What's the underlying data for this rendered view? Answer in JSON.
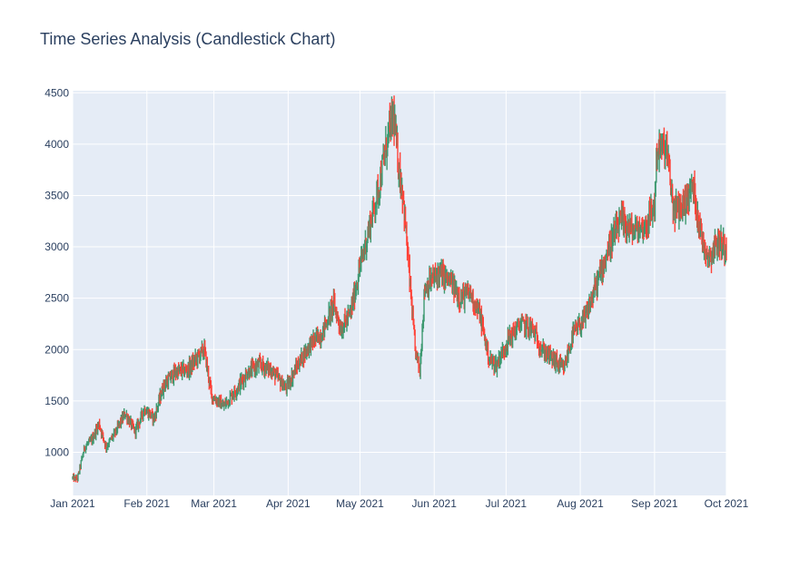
{
  "chart_data": {
    "type": "candlestick",
    "title": "Time Series Analysis (Candlestick Chart)",
    "xlabel": "",
    "ylabel": "",
    "x_range": [
      "2021-01-01",
      "2021-10-01"
    ],
    "ylim": [
      580,
      4520
    ],
    "x_ticks": [
      {
        "date": "2021-01-01",
        "label": "Jan 2021"
      },
      {
        "date": "2021-02-01",
        "label": "Feb 2021"
      },
      {
        "date": "2021-03-01",
        "label": "Mar 2021"
      },
      {
        "date": "2021-04-01",
        "label": "Apr 2021"
      },
      {
        "date": "2021-05-01",
        "label": "May 2021"
      },
      {
        "date": "2021-06-01",
        "label": "Jun 2021"
      },
      {
        "date": "2021-07-01",
        "label": "Jul 2021"
      },
      {
        "date": "2021-08-01",
        "label": "Aug 2021"
      },
      {
        "date": "2021-09-01",
        "label": "Sep 2021"
      },
      {
        "date": "2021-10-01",
        "label": "Oct 2021"
      }
    ],
    "y_ticks": [
      {
        "value": 1000,
        "label": "1000"
      },
      {
        "value": 1500,
        "label": "1500"
      },
      {
        "value": 2000,
        "label": "2000"
      },
      {
        "value": 2500,
        "label": "2500"
      },
      {
        "value": 3000,
        "label": "3000"
      },
      {
        "value": 3500,
        "label": "3500"
      },
      {
        "value": 4000,
        "label": "4000"
      },
      {
        "value": 4500,
        "label": "4500"
      }
    ],
    "grid": true,
    "colors": {
      "increasing": "#3d9970",
      "decreasing": "#ff4136",
      "plot_bg": "#e5ecf6",
      "grid": "#ffffff",
      "text": "#2a3f5f"
    },
    "trend_close": [
      [
        "2021-01-01",
        750
      ],
      [
        "2021-01-03",
        740
      ],
      [
        "2021-01-06",
        1050
      ],
      [
        "2021-01-09",
        1120
      ],
      [
        "2021-01-12",
        1280
      ],
      [
        "2021-01-15",
        1050
      ],
      [
        "2021-01-19",
        1200
      ],
      [
        "2021-01-23",
        1380
      ],
      [
        "2021-01-27",
        1200
      ],
      [
        "2021-01-31",
        1420
      ],
      [
        "2021-02-04",
        1330
      ],
      [
        "2021-02-08",
        1650
      ],
      [
        "2021-02-13",
        1780
      ],
      [
        "2021-02-18",
        1800
      ],
      [
        "2021-02-23",
        1950
      ],
      [
        "2021-02-25",
        2000
      ],
      [
        "2021-02-28",
        1550
      ],
      [
        "2021-03-05",
        1450
      ],
      [
        "2021-03-10",
        1600
      ],
      [
        "2021-03-15",
        1780
      ],
      [
        "2021-03-20",
        1850
      ],
      [
        "2021-03-25",
        1800
      ],
      [
        "2021-03-31",
        1620
      ],
      [
        "2021-04-05",
        1850
      ],
      [
        "2021-04-10",
        2050
      ],
      [
        "2021-04-15",
        2150
      ],
      [
        "2021-04-20",
        2450
      ],
      [
        "2021-04-23",
        2200
      ],
      [
        "2021-04-27",
        2350
      ],
      [
        "2021-05-01",
        2800
      ],
      [
        "2021-05-05",
        3200
      ],
      [
        "2021-05-09",
        3600
      ],
      [
        "2021-05-13",
        4100
      ],
      [
        "2021-05-15",
        4300
      ],
      [
        "2021-05-17",
        3800
      ],
      [
        "2021-05-19",
        3500
      ],
      [
        "2021-05-22",
        2600
      ],
      [
        "2021-05-24",
        2000
      ],
      [
        "2021-05-26",
        1800
      ],
      [
        "2021-05-28",
        2600
      ],
      [
        "2021-06-03",
        2750
      ],
      [
        "2021-06-08",
        2650
      ],
      [
        "2021-06-12",
        2500
      ],
      [
        "2021-06-16",
        2550
      ],
      [
        "2021-06-20",
        2350
      ],
      [
        "2021-06-24",
        1900
      ],
      [
        "2021-06-27",
        1850
      ],
      [
        "2021-07-02",
        2100
      ],
      [
        "2021-07-07",
        2250
      ],
      [
        "2021-07-12",
        2200
      ],
      [
        "2021-07-16",
        2000
      ],
      [
        "2021-07-21",
        1900
      ],
      [
        "2021-07-25",
        1800
      ],
      [
        "2021-07-29",
        2150
      ],
      [
        "2021-08-03",
        2300
      ],
      [
        "2021-08-08",
        2650
      ],
      [
        "2021-08-13",
        3000
      ],
      [
        "2021-08-18",
        3250
      ],
      [
        "2021-08-23",
        3150
      ],
      [
        "2021-08-28",
        3200
      ],
      [
        "2021-09-01",
        3400
      ],
      [
        "2021-09-02",
        3950
      ],
      [
        "2021-09-06",
        3950
      ],
      [
        "2021-09-09",
        3350
      ],
      [
        "2021-09-13",
        3400
      ],
      [
        "2021-09-17",
        3600
      ],
      [
        "2021-09-21",
        3050
      ],
      [
        "2021-09-24",
        2900
      ],
      [
        "2021-09-27",
        3050
      ],
      [
        "2021-10-01",
        3000
      ]
    ]
  }
}
